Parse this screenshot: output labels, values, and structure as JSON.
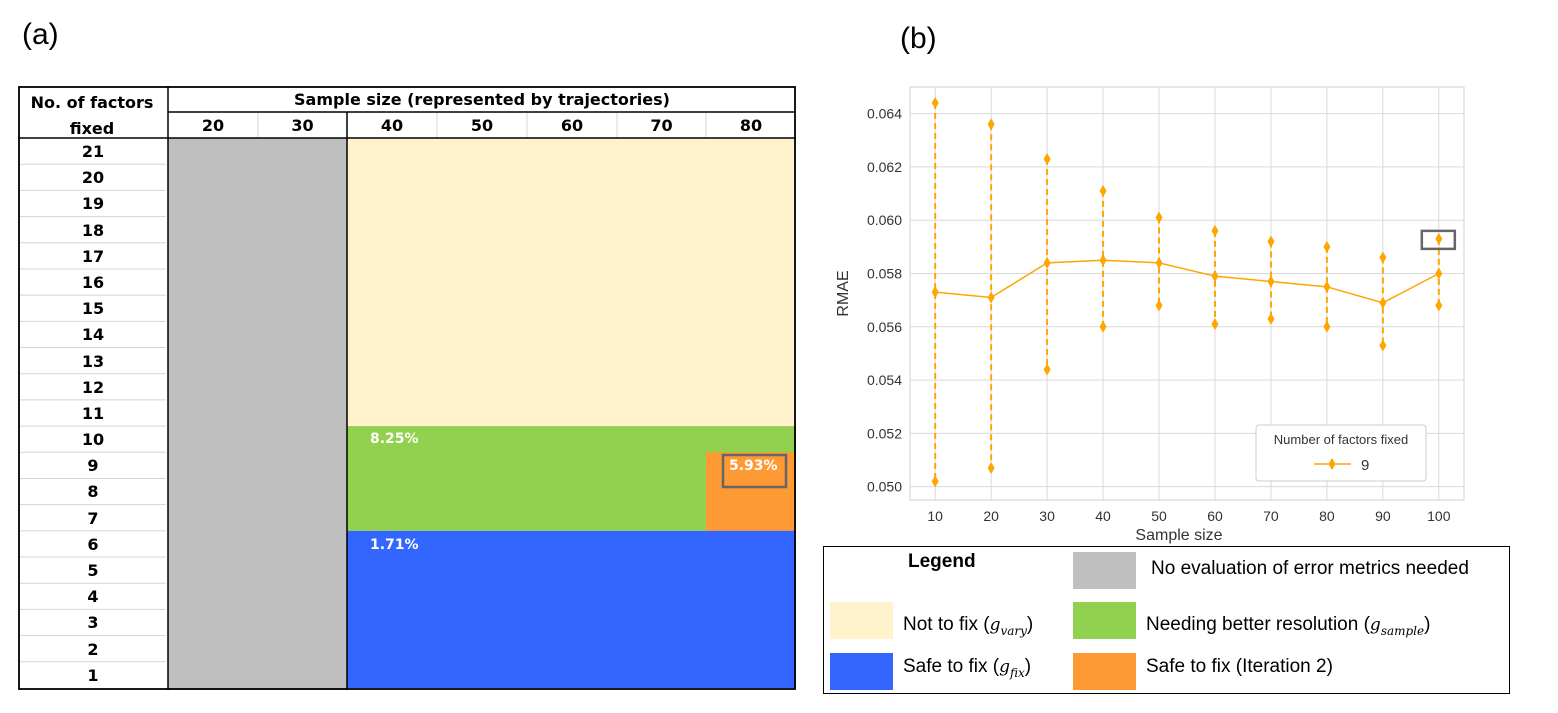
{
  "panel_a": {
    "label": "(a)",
    "row_header_line1": "No. of factors",
    "row_header_line2": "fixed",
    "col_group_header": "Sample size (represented by trajectories)",
    "columns": [
      "20",
      "30",
      "40",
      "50",
      "60",
      "70",
      "80"
    ],
    "rows": [
      "21",
      "20",
      "19",
      "18",
      "17",
      "16",
      "15",
      "14",
      "13",
      "12",
      "11",
      "10",
      "9",
      "8",
      "7",
      "6",
      "5",
      "4",
      "3",
      "2",
      "1"
    ],
    "pct_green": "8.25%",
    "pct_blue": "1.71%",
    "pct_orange": "5.93%",
    "colors": {
      "gray": "#bfbfbf",
      "cream": "#fff2cc",
      "green": "#92d050",
      "blue": "#3366ff",
      "orange": "#ff9933"
    }
  },
  "panel_b": {
    "label": "(b)",
    "chart_data": {
      "type": "line",
      "xlabel": "Sample size",
      "ylabel": "RMAE",
      "x": [
        10,
        20,
        30,
        40,
        50,
        60,
        70,
        80,
        90,
        100
      ],
      "ylim": [
        0.0495,
        0.065
      ],
      "yticks": [
        "0.050",
        "0.052",
        "0.054",
        "0.056",
        "0.058",
        "0.060",
        "0.062",
        "0.064"
      ],
      "xticks": [
        "10",
        "20",
        "30",
        "40",
        "50",
        "60",
        "70",
        "80",
        "90",
        "100"
      ],
      "series": [
        {
          "name": "9",
          "values": [
            0.0573,
            0.0571,
            0.0584,
            0.0585,
            0.0584,
            0.0579,
            0.0577,
            0.0575,
            0.0569,
            0.058
          ],
          "upper": [
            0.0644,
            0.0636,
            0.0623,
            0.0611,
            0.0601,
            0.0596,
            0.0592,
            0.059,
            0.0586,
            0.0593
          ],
          "lower": [
            0.0502,
            0.0507,
            0.0544,
            0.056,
            0.0568,
            0.0561,
            0.0563,
            0.056,
            0.0553,
            0.0568
          ]
        }
      ],
      "legend_title": "Number of factors fixed",
      "legend_position": "lower-right",
      "grid": true,
      "color": "#ffa500",
      "highlight_x": 100
    }
  },
  "legend": {
    "title": "Legend",
    "gray_text": "No evaluation of error metrics needed",
    "cream_text": "Not to fix (",
    "cream_sub": "g",
    "cream_sub_idx": "vary",
    "green_text": "Needing better resolution (",
    "green_sub": "g",
    "green_sub_idx": "sample",
    "blue_text": "Safe to fix (",
    "blue_sub": "g",
    "blue_sub_idx": "fix",
    "orange_text": "Safe to fix (Iteration 2)",
    "close_paren": ")"
  }
}
